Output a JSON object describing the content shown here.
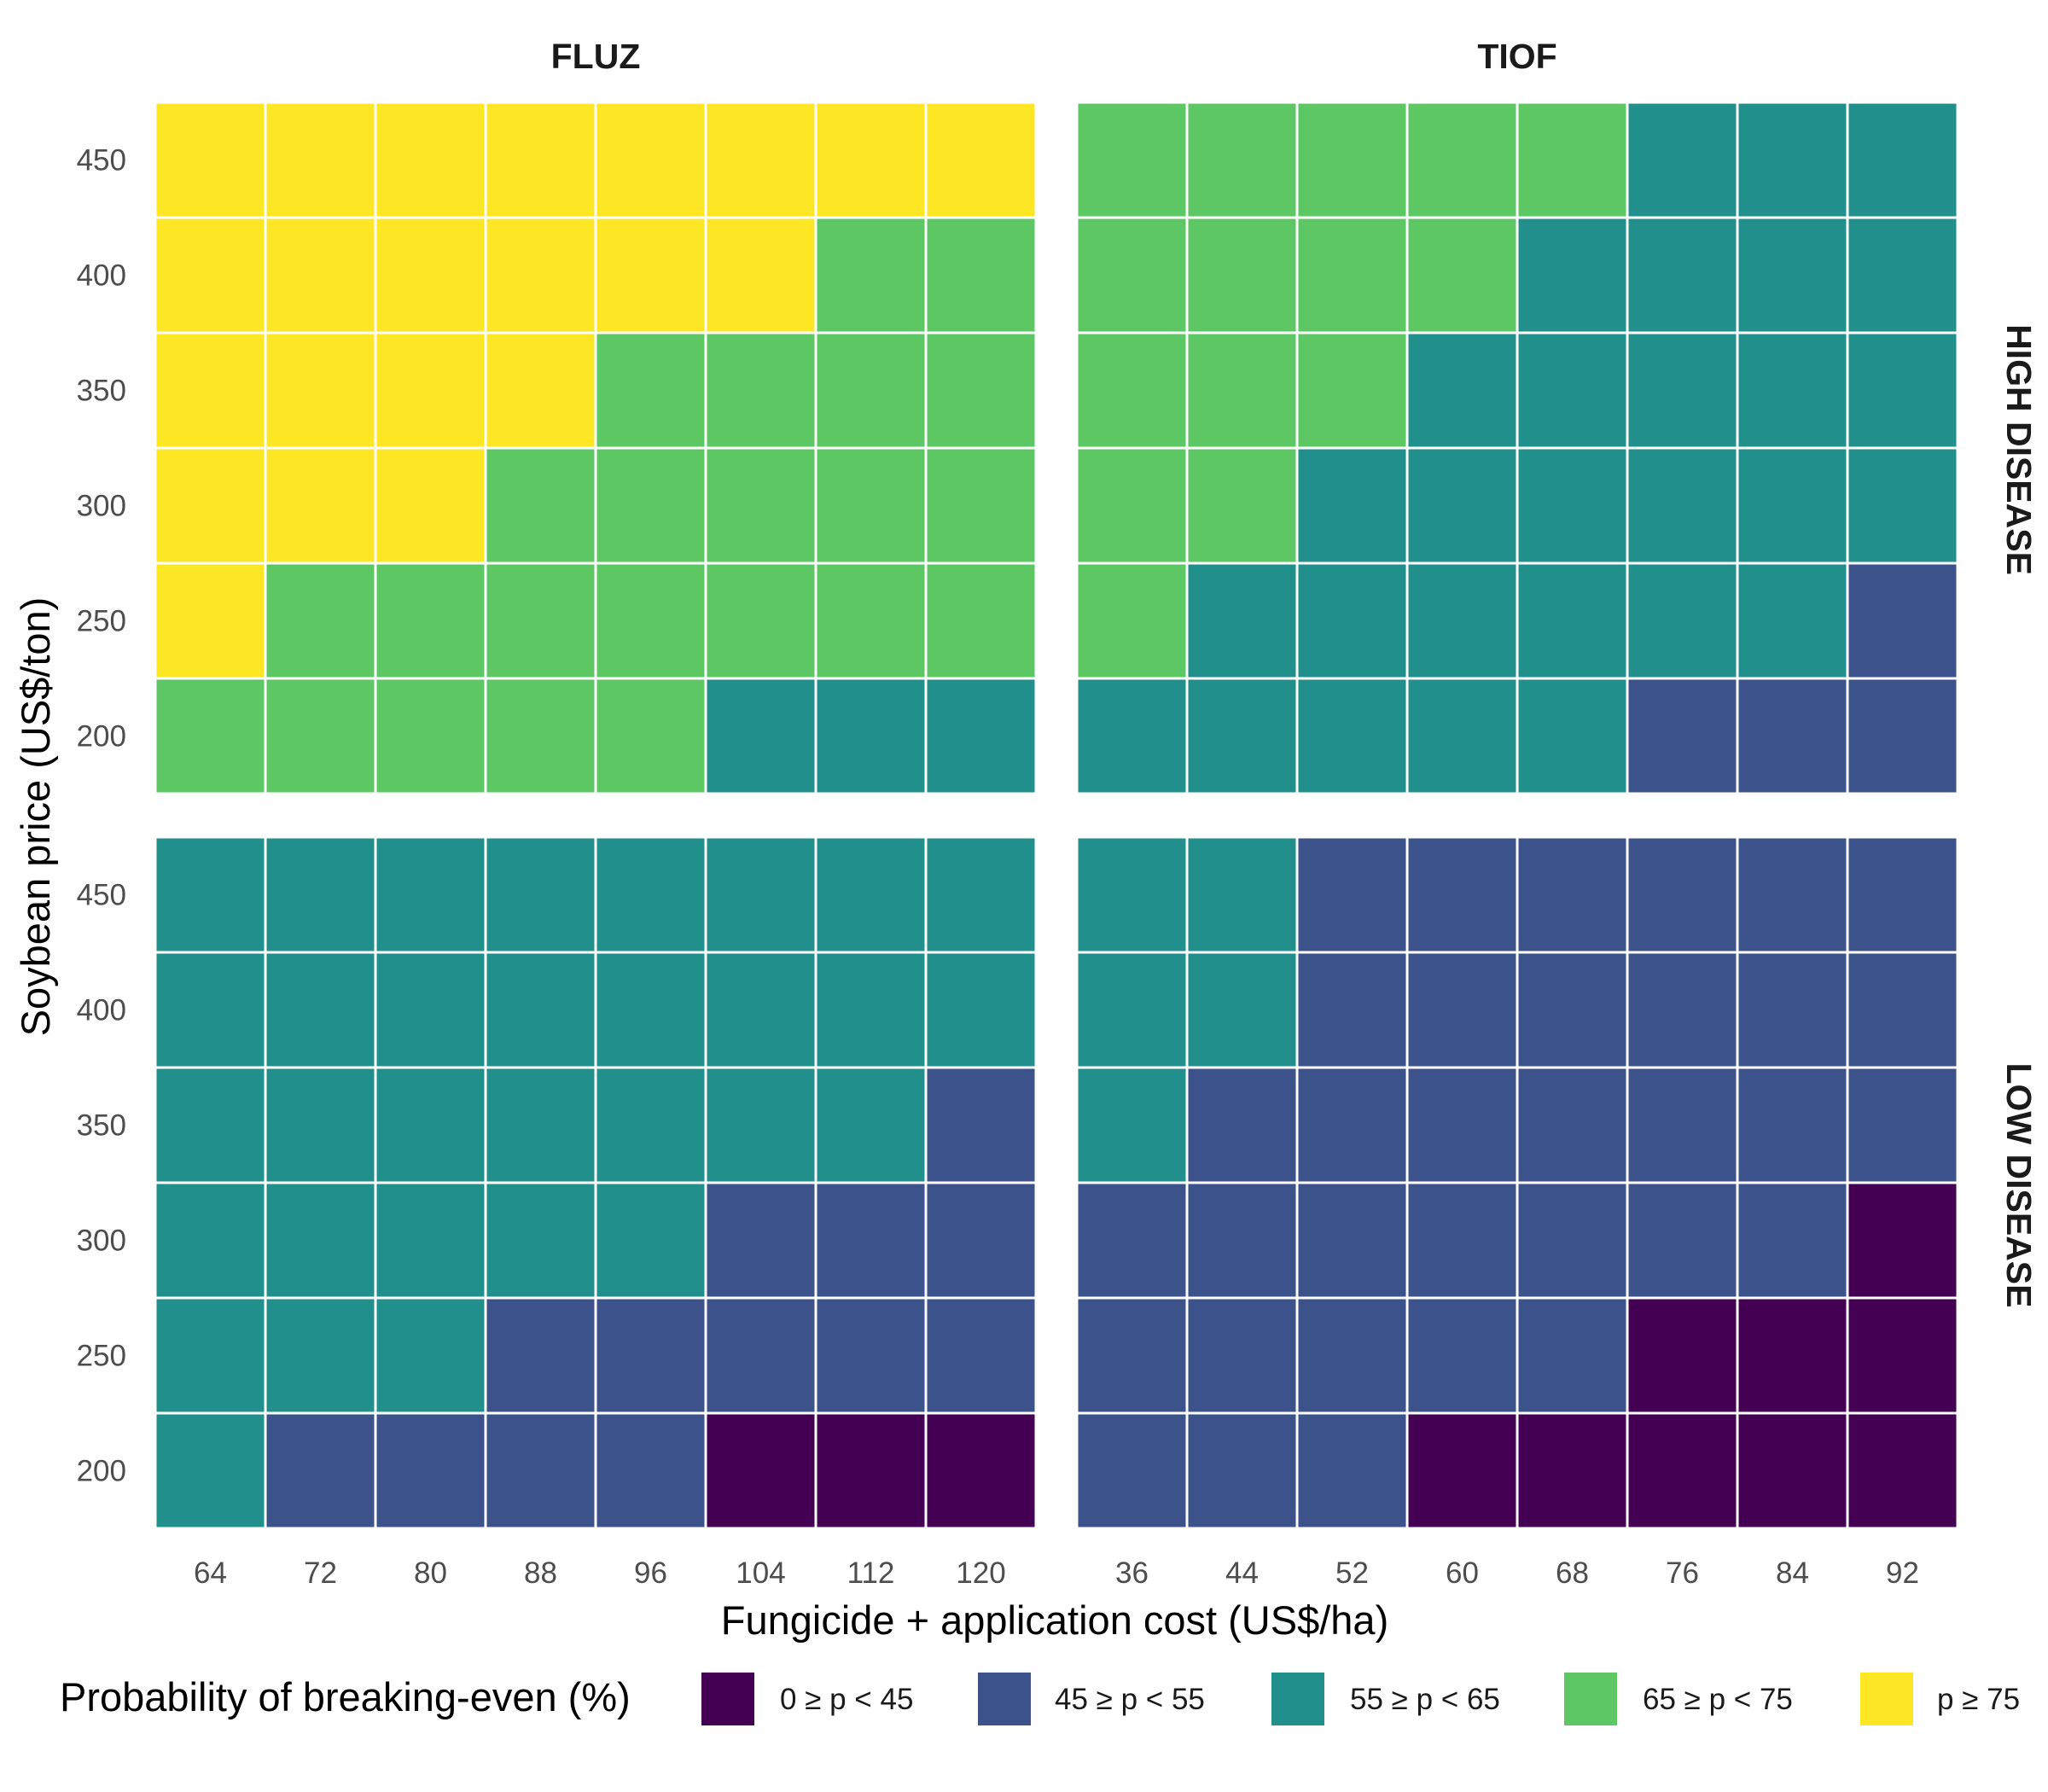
{
  "chart_data": {
    "type": "heatmap",
    "title": "",
    "xlabel": "Fungicide + application cost (US$/ha)",
    "ylabel": "Soybean price (US$/ton)",
    "y": [
      200,
      250,
      300,
      350,
      400,
      450
    ],
    "columns": [
      {
        "name": "FLUZ",
        "x": [
          64,
          72,
          80,
          88,
          96,
          104,
          112,
          120
        ]
      },
      {
        "name": "TIOF",
        "x": [
          36,
          44,
          52,
          60,
          68,
          76,
          84,
          92
        ]
      }
    ],
    "rows": [
      {
        "name": "HIGH DISEASE"
      },
      {
        "name": "LOW DISEASE"
      }
    ],
    "legend": {
      "title": "Probability of breaking-even (%)",
      "position": "bottom",
      "categories": [
        {
          "label": "0 ≥ p < 45",
          "color": "#440154"
        },
        {
          "label": "45 ≥ p < 55",
          "color": "#3B528B"
        },
        {
          "label": "55 ≥ p < 65",
          "color": "#21908C"
        },
        {
          "label": "65 ≥ p < 75",
          "color": "#5DC863"
        },
        {
          "label": "p ≥ 75",
          "color": "#FDE725"
        }
      ]
    },
    "panels": [
      {
        "column": "FLUZ",
        "row": "HIGH DISEASE",
        "category_index_by_y_top_to_bottom": [
          [
            4,
            4,
            4,
            4,
            4,
            4,
            4,
            4
          ],
          [
            4,
            4,
            4,
            4,
            4,
            4,
            3,
            3
          ],
          [
            4,
            4,
            4,
            4,
            3,
            3,
            3,
            3
          ],
          [
            4,
            4,
            4,
            3,
            3,
            3,
            3,
            3
          ],
          [
            4,
            3,
            3,
            3,
            3,
            3,
            3,
            3
          ],
          [
            3,
            3,
            3,
            3,
            3,
            2,
            2,
            2
          ]
        ]
      },
      {
        "column": "TIOF",
        "row": "HIGH DISEASE",
        "category_index_by_y_top_to_bottom": [
          [
            3,
            3,
            3,
            3,
            3,
            2,
            2,
            2
          ],
          [
            3,
            3,
            3,
            3,
            2,
            2,
            2,
            2
          ],
          [
            3,
            3,
            3,
            2,
            2,
            2,
            2,
            2
          ],
          [
            3,
            3,
            2,
            2,
            2,
            2,
            2,
            2
          ],
          [
            3,
            2,
            2,
            2,
            2,
            2,
            2,
            1
          ],
          [
            2,
            2,
            2,
            2,
            2,
            1,
            1,
            1
          ]
        ]
      },
      {
        "column": "FLUZ",
        "row": "LOW DISEASE",
        "category_index_by_y_top_to_bottom": [
          [
            2,
            2,
            2,
            2,
            2,
            2,
            2,
            2
          ],
          [
            2,
            2,
            2,
            2,
            2,
            2,
            2,
            2
          ],
          [
            2,
            2,
            2,
            2,
            2,
            2,
            2,
            1
          ],
          [
            2,
            2,
            2,
            2,
            2,
            1,
            1,
            1
          ],
          [
            2,
            2,
            2,
            1,
            1,
            1,
            1,
            1
          ],
          [
            2,
            1,
            1,
            1,
            1,
            0,
            0,
            0
          ]
        ]
      },
      {
        "column": "TIOF",
        "row": "LOW DISEASE",
        "category_index_by_y_top_to_bottom": [
          [
            2,
            2,
            1,
            1,
            1,
            1,
            1,
            1
          ],
          [
            2,
            2,
            1,
            1,
            1,
            1,
            1,
            1
          ],
          [
            2,
            1,
            1,
            1,
            1,
            1,
            1,
            1
          ],
          [
            1,
            1,
            1,
            1,
            1,
            1,
            1,
            0
          ],
          [
            1,
            1,
            1,
            1,
            1,
            0,
            0,
            0
          ],
          [
            1,
            1,
            1,
            0,
            0,
            0,
            0,
            0
          ]
        ]
      }
    ]
  }
}
